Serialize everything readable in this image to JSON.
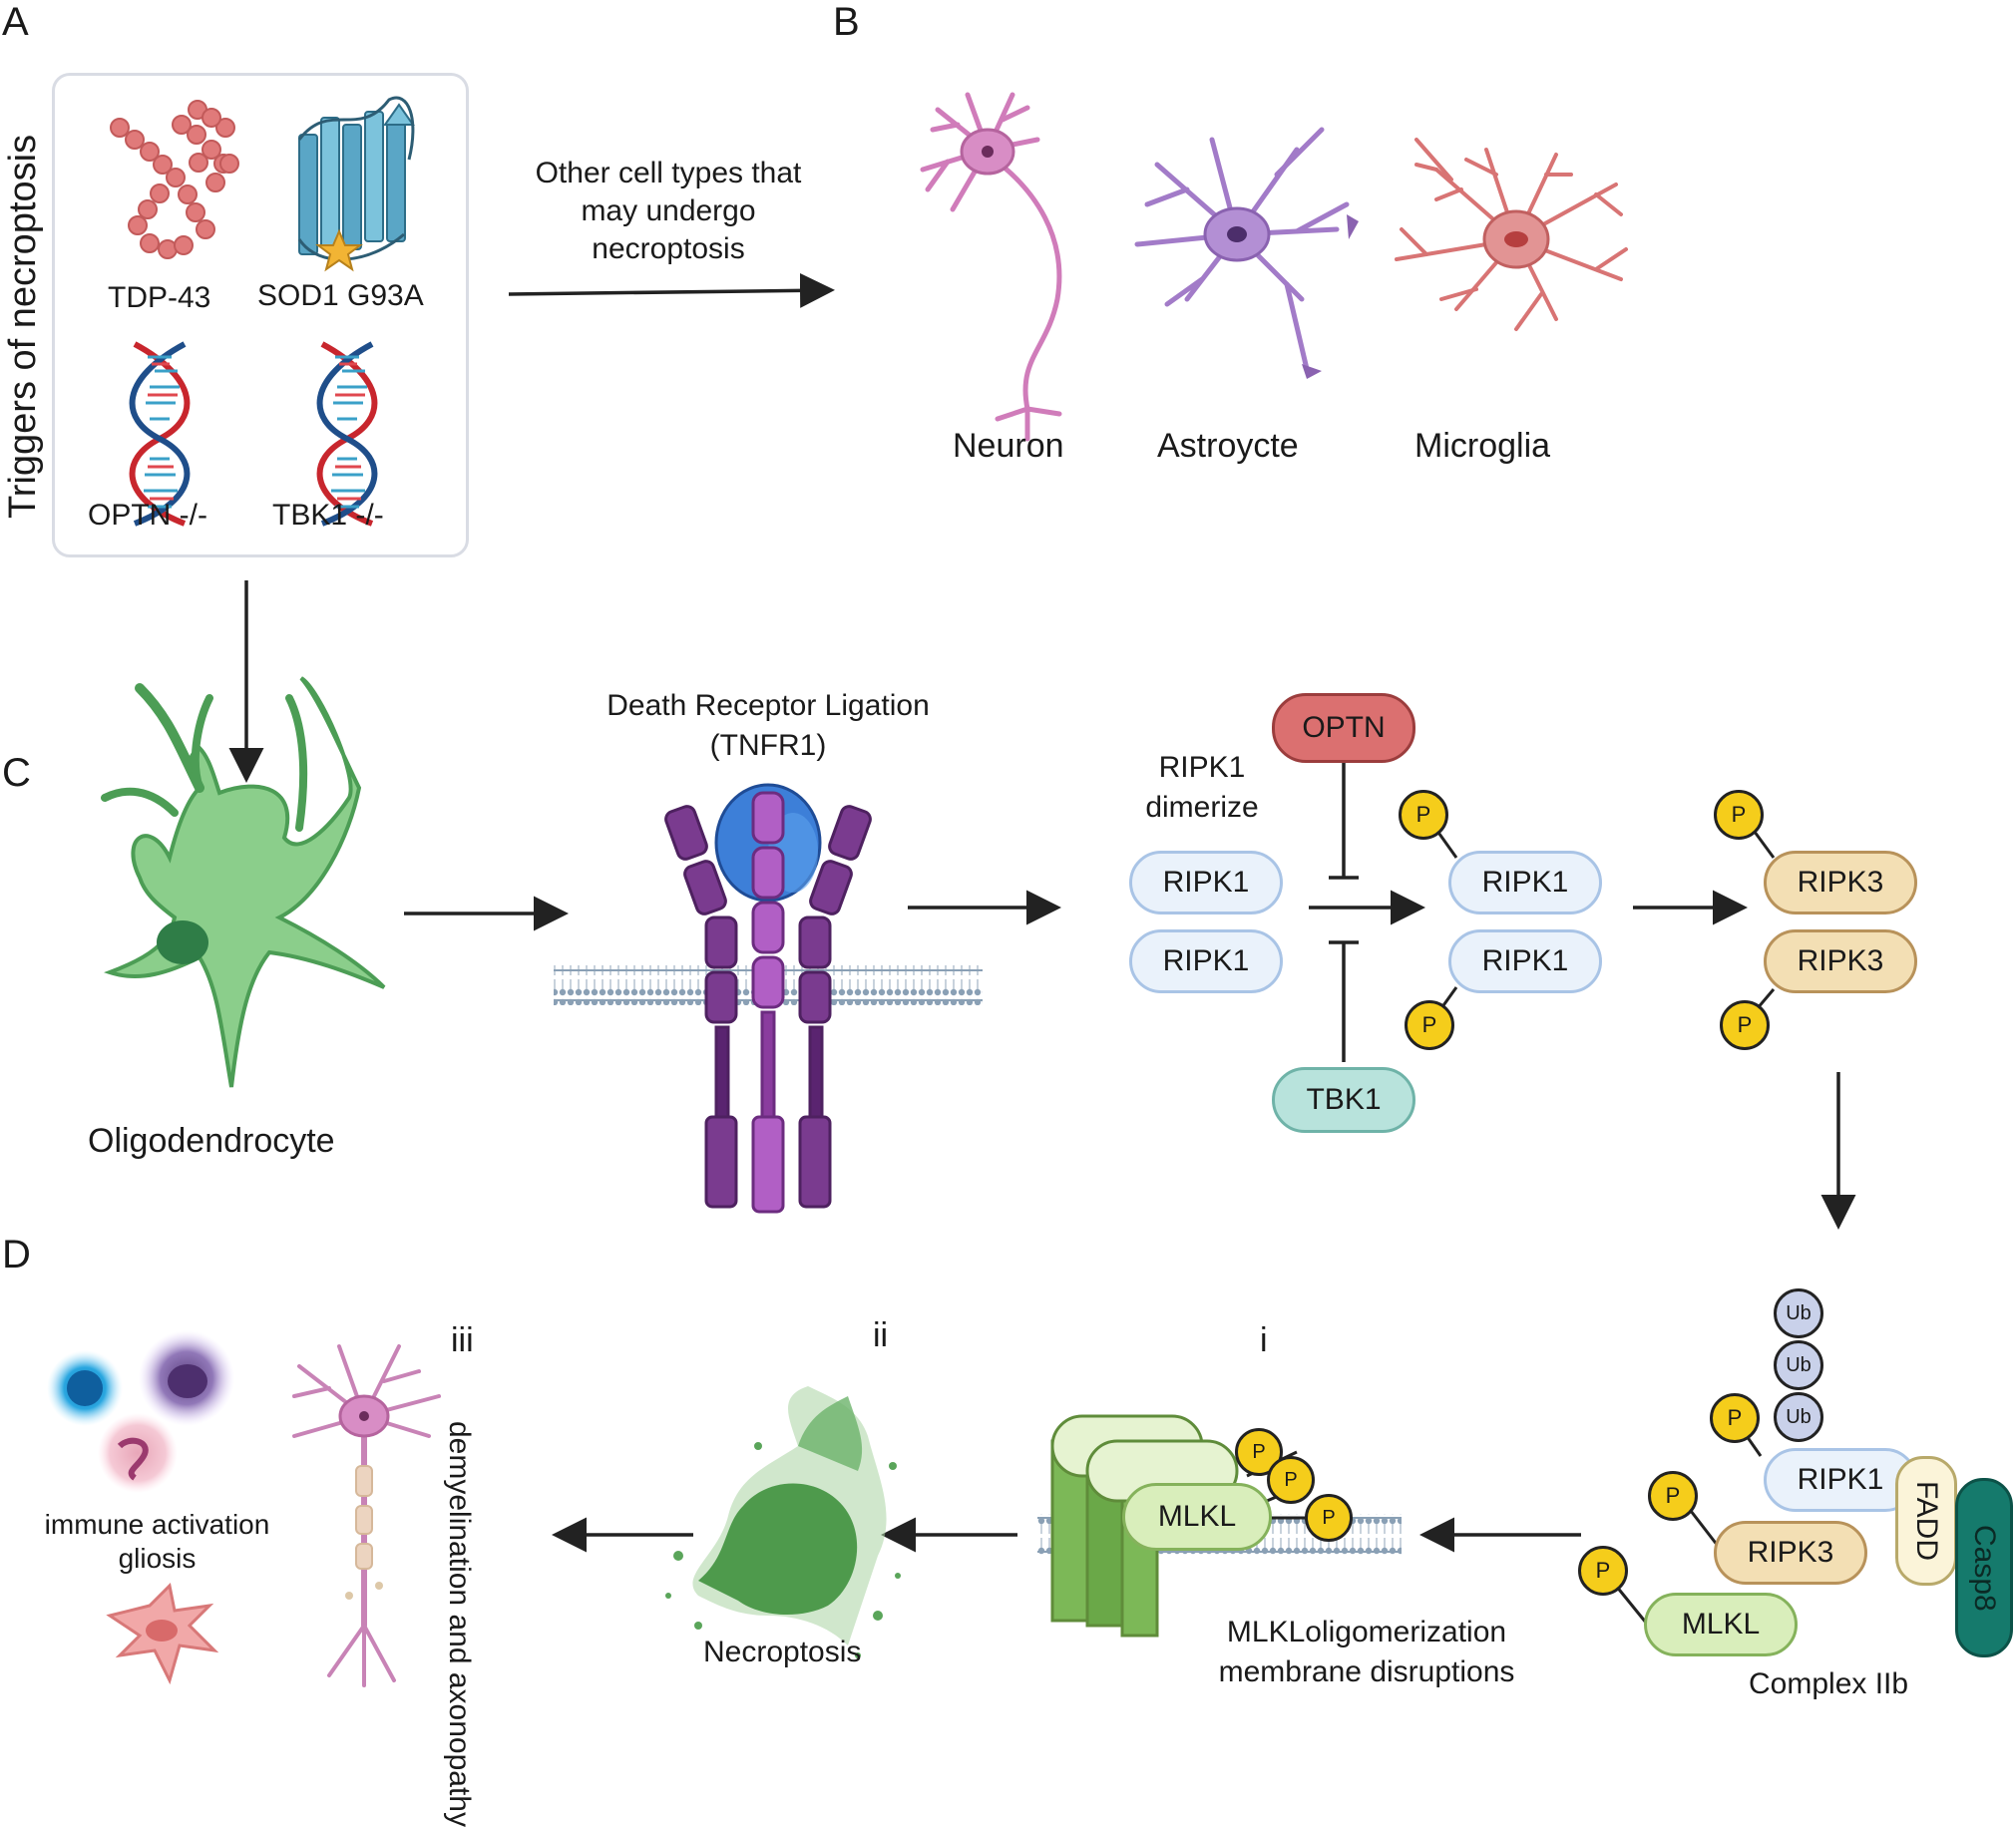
{
  "panels": {
    "a": "A",
    "b": "B",
    "c": "C",
    "d": "D"
  },
  "panel_a": {
    "side_title": "Triggers of necroptosis",
    "items": [
      "TDP-43",
      "SOD1 G93A",
      "OPTN -/-",
      "TBK1 -/-"
    ]
  },
  "arrow_ab_label": [
    "Other cell types that",
    "may undergo",
    "necroptosis"
  ],
  "panel_b": {
    "cells": [
      "Neuron",
      "Astroycte",
      "Microglia"
    ]
  },
  "panel_c": {
    "oligodendrocyte": "Oligodendrocyte",
    "receptor_title": [
      "Death Receptor Ligation",
      "(TNFR1)"
    ],
    "dimerize_label": [
      "RIPK1",
      "dimerize"
    ],
    "ripk1": "RIPK1",
    "ripk3": "RIPK3",
    "optn": "OPTN",
    "tbk1": "TBK1",
    "phospho": "P"
  },
  "complex": {
    "ub": "Ub",
    "ripk1": "RIPK1",
    "ripk3": "RIPK3",
    "mlkl": "MLKL",
    "fadd": "FADD",
    "casp8": "Casp8",
    "phospho": "P",
    "title": "Complex IIb"
  },
  "panel_d": {
    "stage_i": "i",
    "stage_ii": "ii",
    "stage_iii": "iii",
    "mlkl": "MLKL",
    "phospho": "P",
    "mlkl_caption": [
      "MLKLoligomerization",
      "membrane disruptions"
    ],
    "necroptosis": "Necroptosis",
    "demyelination": [
      "demyelination and",
      "axonopathy"
    ],
    "immune": [
      "immune activation",
      "gliosis"
    ]
  },
  "colors": {
    "ripk1": "#eaf2fb",
    "ripk3": "#f3dfb4",
    "optn": "#db7070",
    "tbk1": "#b8e3dc",
    "mlkl": "#d9eebb",
    "phospho": "#f5cd1b",
    "ub": "#c9d1ea",
    "casp8": "#157a6c",
    "receptor": "#7a3b8f",
    "ligand": "#3d7fd8"
  }
}
